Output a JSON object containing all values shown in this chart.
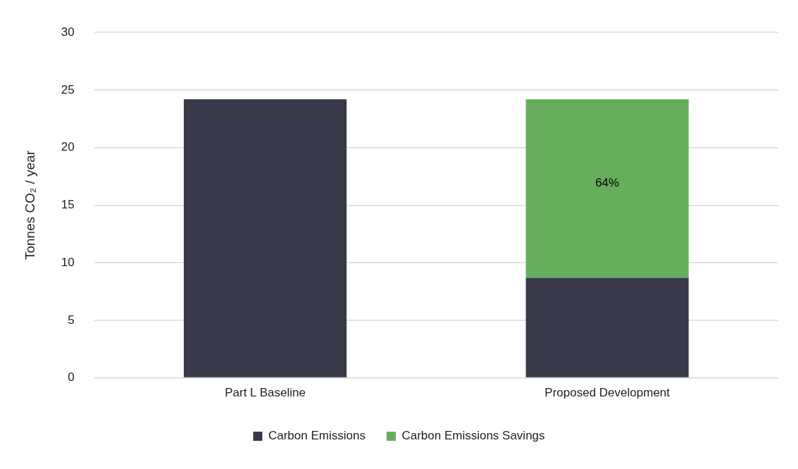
{
  "chart_data": {
    "type": "bar",
    "stacked": true,
    "ylabel": "Tonnes CO₂ / year",
    "categories": [
      "Part L Baseline",
      "Proposed Development"
    ],
    "series": [
      {
        "name": "Carbon Emissions",
        "color": "#373948",
        "values": [
          24.2,
          8.7
        ]
      },
      {
        "name": "Carbon Emissions Savings",
        "color": "#66ae5c",
        "values": [
          null,
          15.5
        ]
      }
    ],
    "annotations": [
      "64%"
    ],
    "ylim": [
      0,
      30
    ],
    "yticks": [
      0,
      5,
      10,
      15,
      20,
      25,
      30
    ],
    "grid": "y",
    "legend": "bottom"
  }
}
